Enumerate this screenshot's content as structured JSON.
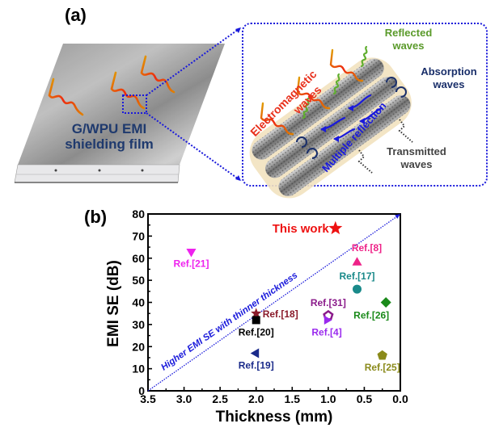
{
  "panel_a": {
    "label": "(a)",
    "film_caption_line1": "G/WPU EMI",
    "film_caption_line2": "shielding film",
    "inset": {
      "electromagnetic_line1": "Electromagnetic",
      "electromagnetic_line2": "waves",
      "reflected_line1": "Reflected",
      "reflected_line2": "waves",
      "absorption_line1": "Absorption",
      "absorption_line2": "waves",
      "multiple_reflection": "Multiple reflection",
      "transmitted_line1": "Transmitted",
      "transmitted_line2": "waves"
    },
    "colors": {
      "film_caption": "#1f3a6e",
      "zoom_box": "#1a1adb",
      "em_wave": "#e8301c",
      "reflected": "#5a9a2a",
      "absorption": "#1a2f6a",
      "multiple": "#1a1adb",
      "transmitted": "#444444"
    }
  },
  "panel_b": {
    "label": "(b)"
  },
  "chart_data": {
    "type": "scatter",
    "title": "",
    "xlabel": "Thickness (mm)",
    "ylabel": "EMI SE (dB)",
    "xlim": [
      3.5,
      0.0
    ],
    "ylim": [
      0,
      80
    ],
    "x_reversed": true,
    "xticks": [
      "3.5",
      "3.0",
      "2.5",
      "2.0",
      "1.5",
      "1.0",
      "0.5",
      "0.0"
    ],
    "xtick_values": [
      3.5,
      3.0,
      2.5,
      2.0,
      1.5,
      1.0,
      0.5,
      0.0
    ],
    "yticks": [
      "0",
      "10",
      "20",
      "30",
      "40",
      "50",
      "60",
      "70",
      "80"
    ],
    "ytick_values": [
      0,
      10,
      20,
      30,
      40,
      50,
      60,
      70,
      80
    ],
    "grid": false,
    "diagonal": {
      "from": [
        3.5,
        0
      ],
      "to": [
        0.0,
        80
      ],
      "label": "Higher EMI SE with thinner thickness",
      "color": "#1a1adb"
    },
    "points": [
      {
        "name": "This work",
        "x": 0.9,
        "y": 73.5,
        "marker": "star",
        "color": "#ee1111",
        "label_pos": "left"
      },
      {
        "name": "Ref.[21]",
        "x": 2.9,
        "y": 63,
        "marker": "triangle-down",
        "color": "#ee22ee",
        "label_pos": "below"
      },
      {
        "name": "Ref.[8]",
        "x": 0.6,
        "y": 58,
        "marker": "triangle-up",
        "color": "#ee2288",
        "label_pos": "above-right"
      },
      {
        "name": "Ref.[17]",
        "x": 0.6,
        "y": 46,
        "marker": "circle",
        "color": "#1a8a8a",
        "label_pos": "above"
      },
      {
        "name": "Ref.[26]",
        "x": 0.2,
        "y": 40,
        "marker": "diamond",
        "color": "#1a8a1a",
        "label_pos": "below-left"
      },
      {
        "name": "Ref.[18]",
        "x": 2.0,
        "y": 35,
        "marker": "star",
        "color": "#8a1a2a",
        "label_pos": "right"
      },
      {
        "name": "Ref.[31]",
        "x": 1.0,
        "y": 34,
        "marker": "pentagon-open",
        "color": "#8a1a8a",
        "label_pos": "above"
      },
      {
        "name": "Ref.[20]",
        "x": 2.0,
        "y": 32,
        "marker": "square",
        "color": "#000000",
        "label_pos": "below"
      },
      {
        "name": "Ref.[4]",
        "x": 1.02,
        "y": 32,
        "marker": "triangle-right",
        "color": "#9a2aee",
        "label_pos": "below"
      },
      {
        "name": "Ref.[19]",
        "x": 2.0,
        "y": 17,
        "marker": "triangle-left",
        "color": "#1a2a8a",
        "label_pos": "below"
      },
      {
        "name": "Ref.[25]",
        "x": 0.25,
        "y": 16,
        "marker": "pentagon",
        "color": "#8a8a1a",
        "label_pos": "below"
      }
    ]
  }
}
